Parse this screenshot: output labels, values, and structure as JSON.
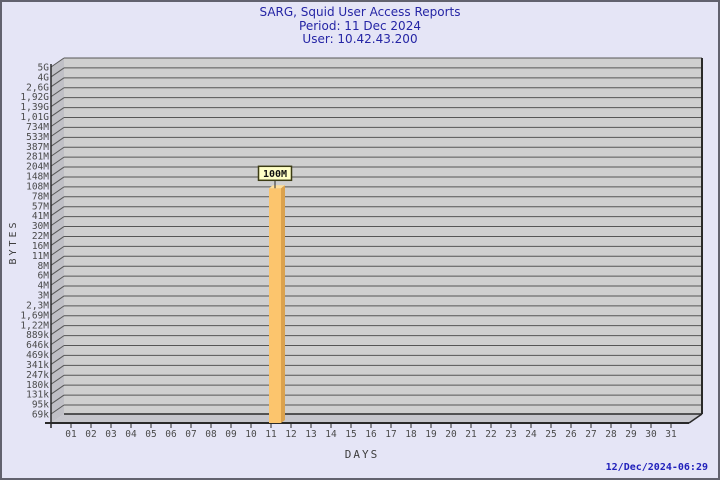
{
  "header": {
    "title": "SARG, Squid User Access Reports",
    "period": "Period: 11 Dec 2024",
    "user": "User: 10.42.43.200"
  },
  "footer": {
    "timestamp": "12/Dec/2024-06:29"
  },
  "colors": {
    "background": "#e5e5f6",
    "border": "#62626e",
    "title_text": "#2525a5",
    "timestamp_text": "#2121bb",
    "panel": "#cfcfcf",
    "wall": "#c0c0c6",
    "floor": "#c6c6cc",
    "grid": "#565656",
    "axis": "#2a2a2a",
    "tick_text": "#4a4a4a",
    "bar_front": "#fcc56d",
    "bar_side": "#dba24d",
    "bar_top": "#ffdf9a",
    "label_box_fill": "#ffffc6",
    "label_box_border": "#3c3c14",
    "label_text": "#111111"
  },
  "chart_data": {
    "type": "bar",
    "title": "SARG, Squid User Access Reports",
    "subtitle": "Period: 11 Dec 2024",
    "subtitle2": "User: 10.42.43.200",
    "xlabel": "DAYS",
    "ylabel": "BYTES",
    "scale": "log",
    "grid": true,
    "ylim": [
      69000,
      5000000000
    ],
    "y_ticks": [
      "5G",
      "4G",
      "2,6G",
      "1,92G",
      "1,39G",
      "1,01G",
      "734M",
      "533M",
      "387M",
      "281M",
      "204M",
      "148M",
      "108M",
      "78M",
      "57M",
      "41M",
      "30M",
      "22M",
      "16M",
      "11M",
      "8M",
      "6M",
      "4M",
      "3M",
      "2,3M",
      "1,69M",
      "1,22M",
      "889k",
      "646k",
      "469k",
      "341k",
      "247k",
      "180k",
      "131k",
      "95k",
      "69k"
    ],
    "categories": [
      "01",
      "02",
      "03",
      "04",
      "05",
      "06",
      "07",
      "08",
      "09",
      "10",
      "11",
      "12",
      "13",
      "14",
      "15",
      "16",
      "17",
      "18",
      "19",
      "20",
      "21",
      "22",
      "23",
      "24",
      "25",
      "26",
      "27",
      "28",
      "29",
      "30",
      "31"
    ],
    "values": [
      0,
      0,
      0,
      0,
      0,
      0,
      0,
      0,
      0,
      0,
      100000000,
      0,
      0,
      0,
      0,
      0,
      0,
      0,
      0,
      0,
      0,
      0,
      0,
      0,
      0,
      0,
      0,
      0,
      0,
      0,
      0
    ],
    "value_labels": [
      "",
      "",
      "",
      "",
      "",
      "",
      "",
      "",
      "",
      "",
      "100M",
      "",
      "",
      "",
      "",
      "",
      "",
      "",
      "",
      "",
      "",
      "",
      "",
      "",
      "",
      "",
      "",
      "",
      "",
      "",
      ""
    ]
  }
}
